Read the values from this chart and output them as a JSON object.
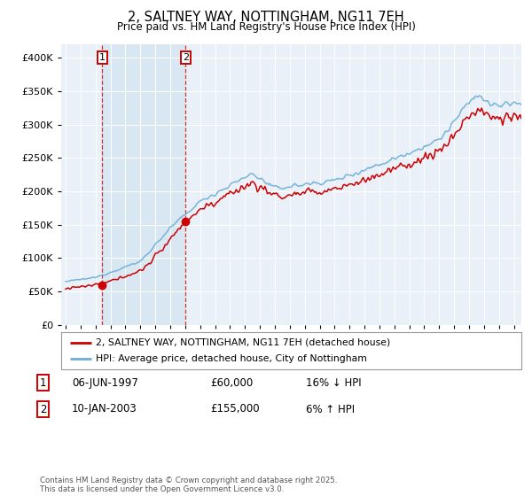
{
  "title": "2, SALTNEY WAY, NOTTINGHAM, NG11 7EH",
  "subtitle": "Price paid vs. HM Land Registry's House Price Index (HPI)",
  "legend_line1": "2, SALTNEY WAY, NOTTINGHAM, NG11 7EH (detached house)",
  "legend_line2": "HPI: Average price, detached house, City of Nottingham",
  "footer": "Contains HM Land Registry data © Crown copyright and database right 2025.\nThis data is licensed under the Open Government Licence v3.0.",
  "sale1_year": 1997.44,
  "sale1_price": 60000,
  "sale2_year": 2003.03,
  "sale2_price": 155000,
  "hpi_color": "#6baed6",
  "price_color": "#cc0000",
  "shade_color": "#ddeeff",
  "bg_color": "#eaf0f8",
  "ylim": [
    0,
    420000
  ],
  "xlim_start": 1994.7,
  "xlim_end": 2025.5
}
